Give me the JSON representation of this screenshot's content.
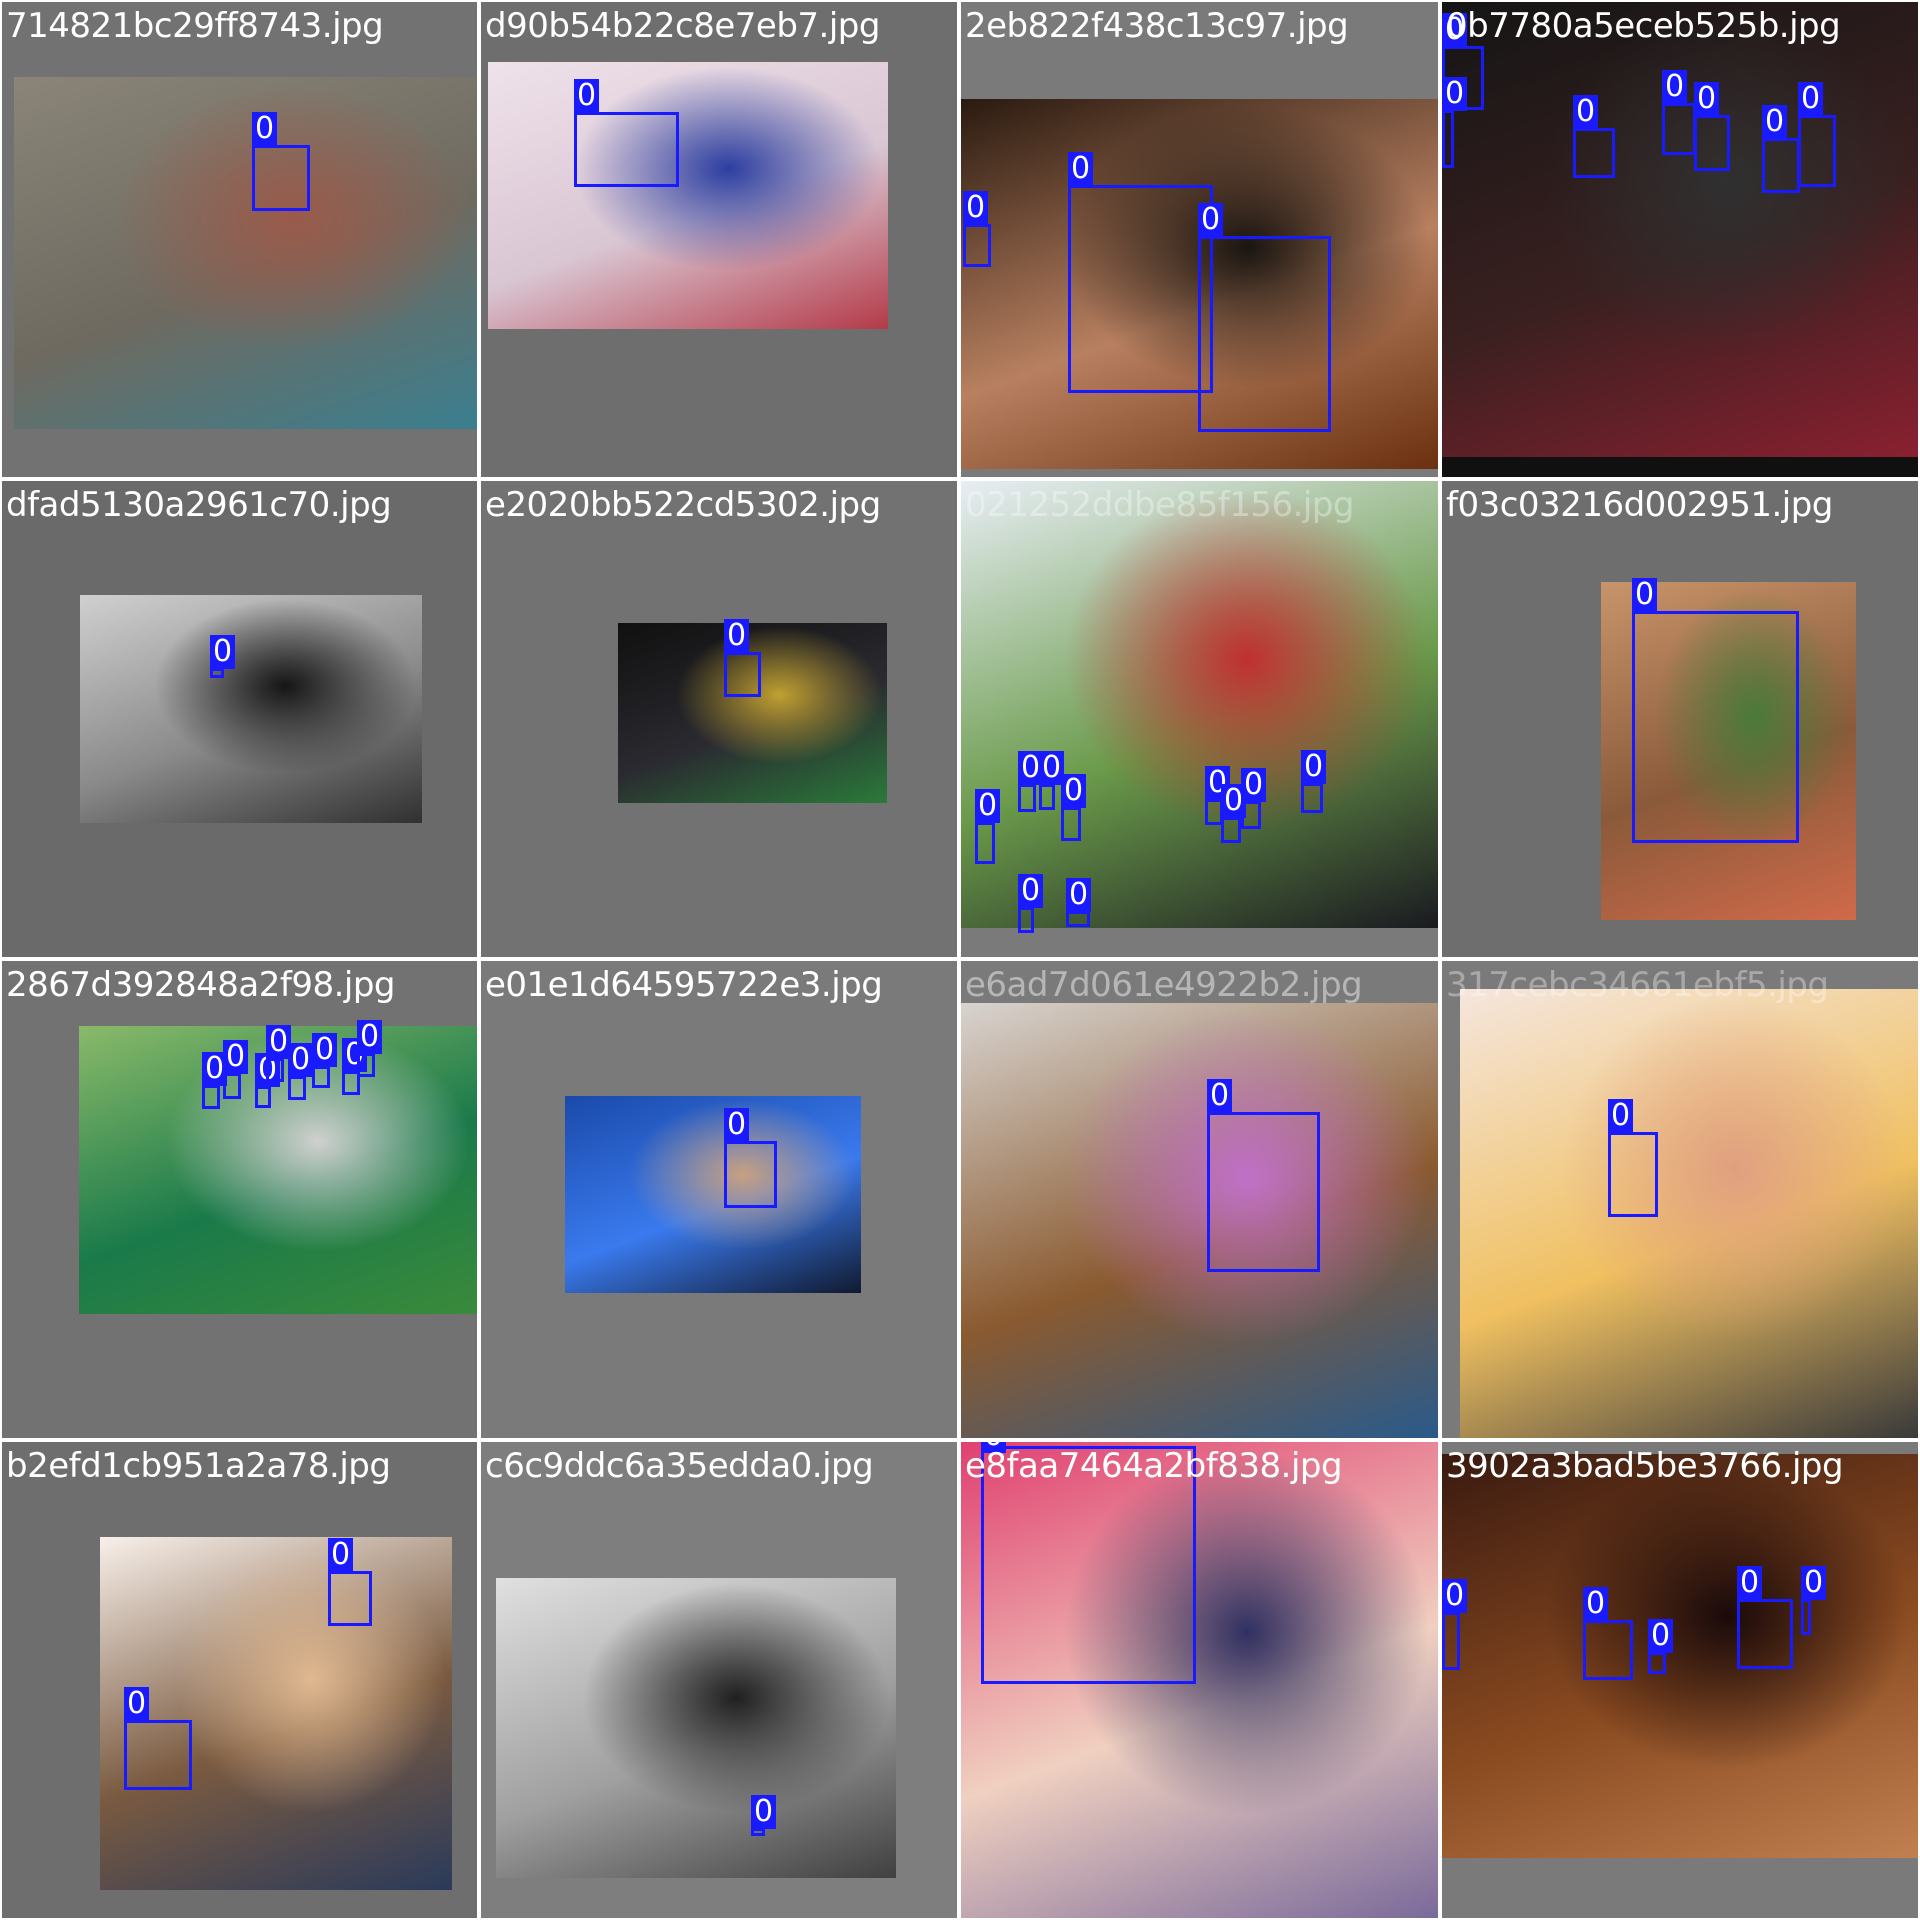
{
  "mosaic": {
    "title": "",
    "tiles": [
      {
        "filename": "714821bc29ff8743.jpg",
        "bg": "#727272",
        "photo_colors": [
          "#8a8578",
          "#6f6a60",
          "#3a7f8f",
          "#9a5a4a"
        ],
        "detection_count": 1,
        "box_label": "0"
      },
      {
        "filename": "d90b54b22c8e7eb7.jpg",
        "bg": "#6e6e6e",
        "photo_colors": [
          "#efe2ea",
          "#d9c6d3",
          "#b43a48",
          "#2b3ea0"
        ],
        "detection_count": 1,
        "box_label": "0"
      },
      {
        "filename": "2eb822f438c13c97.jpg",
        "bg": "#7a7a7a",
        "photo_colors": [
          "#2a1a10",
          "#b88060",
          "#6a3010",
          "#1a1510"
        ],
        "detection_count": 3,
        "box_label": "0"
      },
      {
        "filename": "0b7780a5eceb525b.jpg",
        "bg": "#101010",
        "photo_colors": [
          "#151515",
          "#3a2020",
          "#8a2030",
          "#303030"
        ],
        "detection_count": 10,
        "box_label": "0"
      },
      {
        "filename": "dfad5130a2961c70.jpg",
        "bg": "#6a6a6a",
        "photo_colors": [
          "#d0d0d0",
          "#8a8a8a",
          "#303030",
          "#151515"
        ],
        "detection_count": 1,
        "box_label": "0"
      },
      {
        "filename": "e2020bb522cd5302.jpg",
        "bg": "#727272",
        "photo_colors": [
          "#101010",
          "#2a2a30",
          "#2a7a3a",
          "#c0a030"
        ],
        "detection_count": 1,
        "box_label": "0"
      },
      {
        "filename": "021252ddbe85f156.jpg",
        "bg": "#7a7a7a",
        "photo_colors": [
          "#e8eef5",
          "#6a9a4a",
          "#1a1a20",
          "#c03030"
        ],
        "detection_count": 14,
        "box_label": "0"
      },
      {
        "filename": "f03c03216d002951.jpg",
        "bg": "#6e6e6e",
        "photo_colors": [
          "#c8946a",
          "#8a5a3a",
          "#d06a4a",
          "#4a7a3a"
        ],
        "detection_count": 1,
        "box_label": "0"
      },
      {
        "filename": "2867d392848a2f98.jpg",
        "bg": "#727272",
        "photo_colors": [
          "#8aba6a",
          "#1a7a4a",
          "#3a8a3a",
          "#d0d0d0"
        ],
        "detection_count": 11,
        "box_label": "0"
      },
      {
        "filename": "e01e1d64595722e3.jpg",
        "bg": "#7a7a7a",
        "photo_colors": [
          "#1a4aaa",
          "#3a7aee",
          "#101a30",
          "#c8a080"
        ],
        "detection_count": 1,
        "box_label": "0"
      },
      {
        "filename": "e6ad7d061e4922b2.jpg",
        "bg": "#7a7a7a",
        "photo_colors": [
          "#d8d4d0",
          "#8a5a30",
          "#2a5a8a",
          "#c070c8"
        ],
        "detection_count": 1,
        "box_label": "0"
      },
      {
        "filename": "317cebc34661ebf5.jpg",
        "bg": "#7a7a7a",
        "photo_colors": [
          "#f5e6de",
          "#f0c060",
          "#3a3a3a",
          "#e0a080"
        ],
        "detection_count": 1,
        "box_label": "0"
      },
      {
        "filename": "b2efd1cb951a2a78.jpg",
        "bg": "#6e6e6e",
        "photo_colors": [
          "#f8f0ea",
          "#7a5a40",
          "#2a3a5a",
          "#e0b890"
        ],
        "detection_count": 2,
        "box_label": "0"
      },
      {
        "filename": "c6c9ddc6a35edda0.jpg",
        "bg": "#7e7e7e",
        "photo_colors": [
          "#e0e0e0",
          "#a0a0a0",
          "#404040",
          "#202020"
        ],
        "detection_count": 1,
        "box_label": "0"
      },
      {
        "filename": "e8faa7464a2bf838.jpg",
        "bg": "#7a7a7a",
        "photo_colors": [
          "#e04070",
          "#f0d0c0",
          "#7a6a9a",
          "#303060"
        ],
        "detection_count": 1,
        "box_label": "0"
      },
      {
        "filename": "3902a3bad5be3766.jpg",
        "bg": "#7a7a7a",
        "photo_colors": [
          "#3a1a10",
          "#8a4a20",
          "#c08050",
          "#1a0a0a"
        ],
        "detection_count": 6,
        "box_label": "0"
      }
    ]
  }
}
